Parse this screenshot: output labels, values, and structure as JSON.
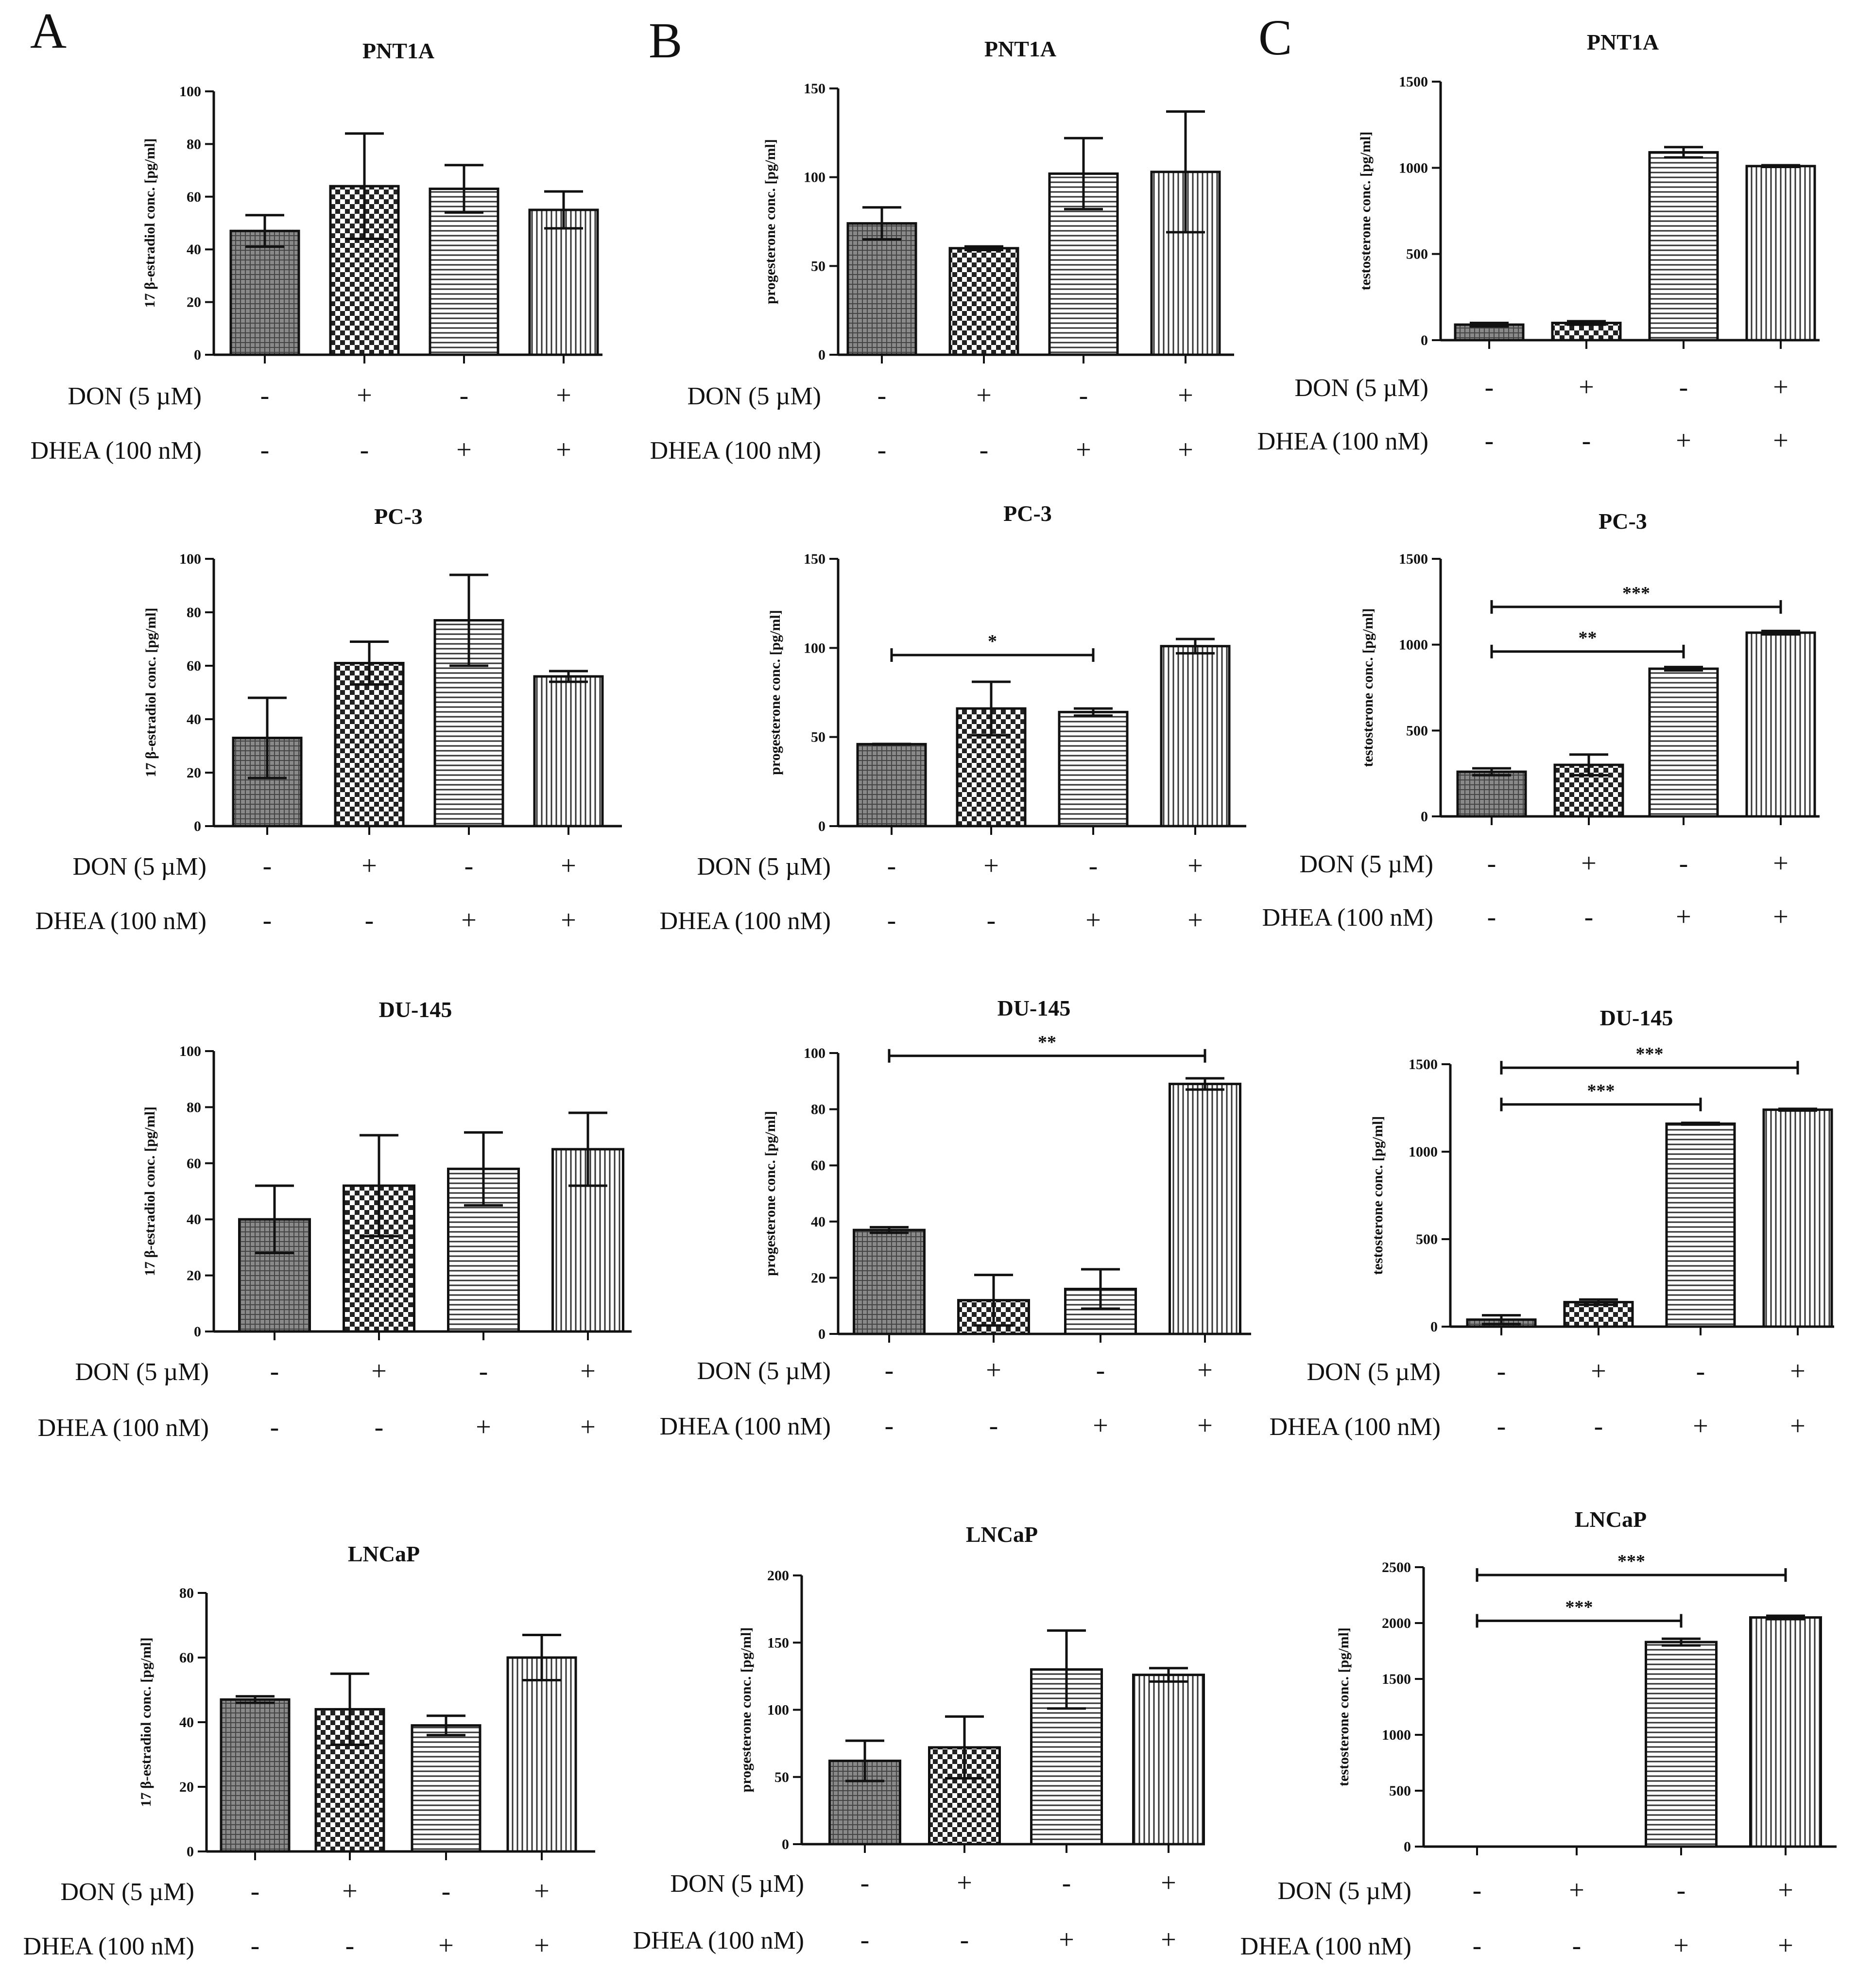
{
  "panel_letters": [
    "A",
    "B",
    "C"
  ],
  "treatment_rows": {
    "don_label": "DON (5 µM)",
    "dhea_label": "DHEA (100 nM)",
    "don_signs": [
      "-",
      "+",
      "-",
      "+"
    ],
    "dhea_signs": [
      "-",
      "-",
      "+",
      "+"
    ]
  },
  "colors": {
    "bar_fill": "#ffffff",
    "axis": "#111111",
    "pattern_ink": "#222222"
  },
  "chart_data": [
    {
      "type": "bar",
      "panel": "A",
      "title": "PNT1A",
      "ylabel": "17 β-estradiol conc. [pg/ml]",
      "ylim": [
        0,
        100
      ],
      "yticks": [
        0,
        20,
        40,
        60,
        80,
        100
      ],
      "values": [
        47,
        64,
        63,
        55
      ],
      "errors": [
        6,
        20,
        9,
        7
      ],
      "significance": []
    },
    {
      "type": "bar",
      "panel": "B",
      "title": "PNT1A",
      "ylabel": "progesterone conc. [pg/ml]",
      "ylim": [
        0,
        150
      ],
      "yticks": [
        0,
        50,
        100,
        150
      ],
      "values": [
        74,
        60,
        102,
        103
      ],
      "errors": [
        9,
        1,
        20,
        34
      ],
      "significance": []
    },
    {
      "type": "bar",
      "panel": "C",
      "title": "PNT1A",
      "ylabel": "testosterone conc. [pg/ml]",
      "ylim": [
        0,
        1500
      ],
      "yticks": [
        0,
        500,
        1000,
        1500
      ],
      "values": [
        90,
        100,
        1090,
        1010
      ],
      "errors": [
        10,
        10,
        30,
        5
      ],
      "significance": []
    },
    {
      "type": "bar",
      "panel": "A",
      "title": "PC-3",
      "ylabel": "17 β-estradiol conc. [pg/ml]",
      "ylim": [
        0,
        100
      ],
      "yticks": [
        0,
        20,
        40,
        60,
        80,
        100
      ],
      "values": [
        33,
        61,
        77,
        56
      ],
      "errors": [
        15,
        8,
        17,
        2
      ],
      "significance": []
    },
    {
      "type": "bar",
      "panel": "B",
      "title": "PC-3",
      "ylabel": "progesterone conc. [pg/ml]",
      "ylim": [
        0,
        150
      ],
      "yticks": [
        0,
        50,
        100,
        150
      ],
      "values": [
        46,
        66,
        64,
        101
      ],
      "errors": [
        0,
        15,
        2,
        4
      ],
      "significance": [
        {
          "from": 0,
          "to": 2,
          "label": "*",
          "level": 96
        }
      ]
    },
    {
      "type": "bar",
      "panel": "C",
      "title": "PC-3",
      "ylabel": "testosterone conc. [pg/ml]",
      "ylim": [
        0,
        1500
      ],
      "yticks": [
        0,
        500,
        1000,
        1500
      ],
      "values": [
        260,
        300,
        860,
        1070
      ],
      "errors": [
        20,
        60,
        10,
        10
      ],
      "significance": [
        {
          "from": 0,
          "to": 2,
          "label": "**",
          "level": 960
        },
        {
          "from": 0,
          "to": 3,
          "label": "***",
          "level": 1220
        }
      ]
    },
    {
      "type": "bar",
      "panel": "A",
      "title": "DU-145",
      "ylabel": "17 β-estradiol conc. [pg/ml]",
      "ylim": [
        0,
        100
      ],
      "yticks": [
        0,
        20,
        40,
        60,
        80,
        100
      ],
      "values": [
        40,
        52,
        58,
        65
      ],
      "errors": [
        12,
        18,
        13,
        13
      ],
      "significance": []
    },
    {
      "type": "bar",
      "panel": "B",
      "title": "DU-145",
      "ylabel": "progesterone conc. [pg/ml]",
      "ylim": [
        0,
        100
      ],
      "yticks": [
        0,
        20,
        40,
        60,
        80,
        100
      ],
      "values": [
        37,
        12,
        16,
        89
      ],
      "errors": [
        1,
        9,
        7,
        2
      ],
      "significance": [
        {
          "from": 0,
          "to": 3,
          "label": "**",
          "level": 99
        }
      ]
    },
    {
      "type": "bar",
      "panel": "C",
      "title": "DU-145",
      "ylabel": "testosterone conc. [pg/ml]",
      "ylim": [
        0,
        1500
      ],
      "yticks": [
        0,
        500,
        1000,
        1500
      ],
      "values": [
        40,
        140,
        1160,
        1240
      ],
      "errors": [
        25,
        15,
        5,
        5
      ],
      "significance": [
        {
          "from": 0,
          "to": 2,
          "label": "***",
          "level": 1270
        },
        {
          "from": 0,
          "to": 3,
          "label": "***",
          "level": 1480
        }
      ]
    },
    {
      "type": "bar",
      "panel": "A",
      "title": "LNCaP",
      "ylabel": "17 β-estradiol conc. [pg/ml]",
      "ylim": [
        0,
        80
      ],
      "yticks": [
        0,
        20,
        40,
        60,
        80
      ],
      "values": [
        47,
        44,
        39,
        60
      ],
      "errors": [
        1,
        11,
        3,
        7
      ],
      "significance": []
    },
    {
      "type": "bar",
      "panel": "B",
      "title": "LNCaP",
      "ylabel": "progesterone conc. [pg/ml]",
      "ylim": [
        0,
        200
      ],
      "yticks": [
        0,
        50,
        100,
        150,
        200
      ],
      "values": [
        62,
        72,
        130,
        126
      ],
      "errors": [
        15,
        23,
        29,
        5
      ],
      "significance": []
    },
    {
      "type": "bar",
      "panel": "C",
      "title": "LNCaP",
      "ylabel": "testosterone conc. [pg/ml]",
      "ylim": [
        0,
        2500
      ],
      "yticks": [
        0,
        500,
        1000,
        1500,
        2000,
        2500
      ],
      "values": [
        0,
        0,
        1830,
        2050
      ],
      "errors": [
        0,
        0,
        30,
        15
      ],
      "significance": [
        {
          "from": 0,
          "to": 2,
          "label": "***",
          "level": 2020
        },
        {
          "from": 0,
          "to": 3,
          "label": "***",
          "level": 2430
        }
      ]
    }
  ]
}
